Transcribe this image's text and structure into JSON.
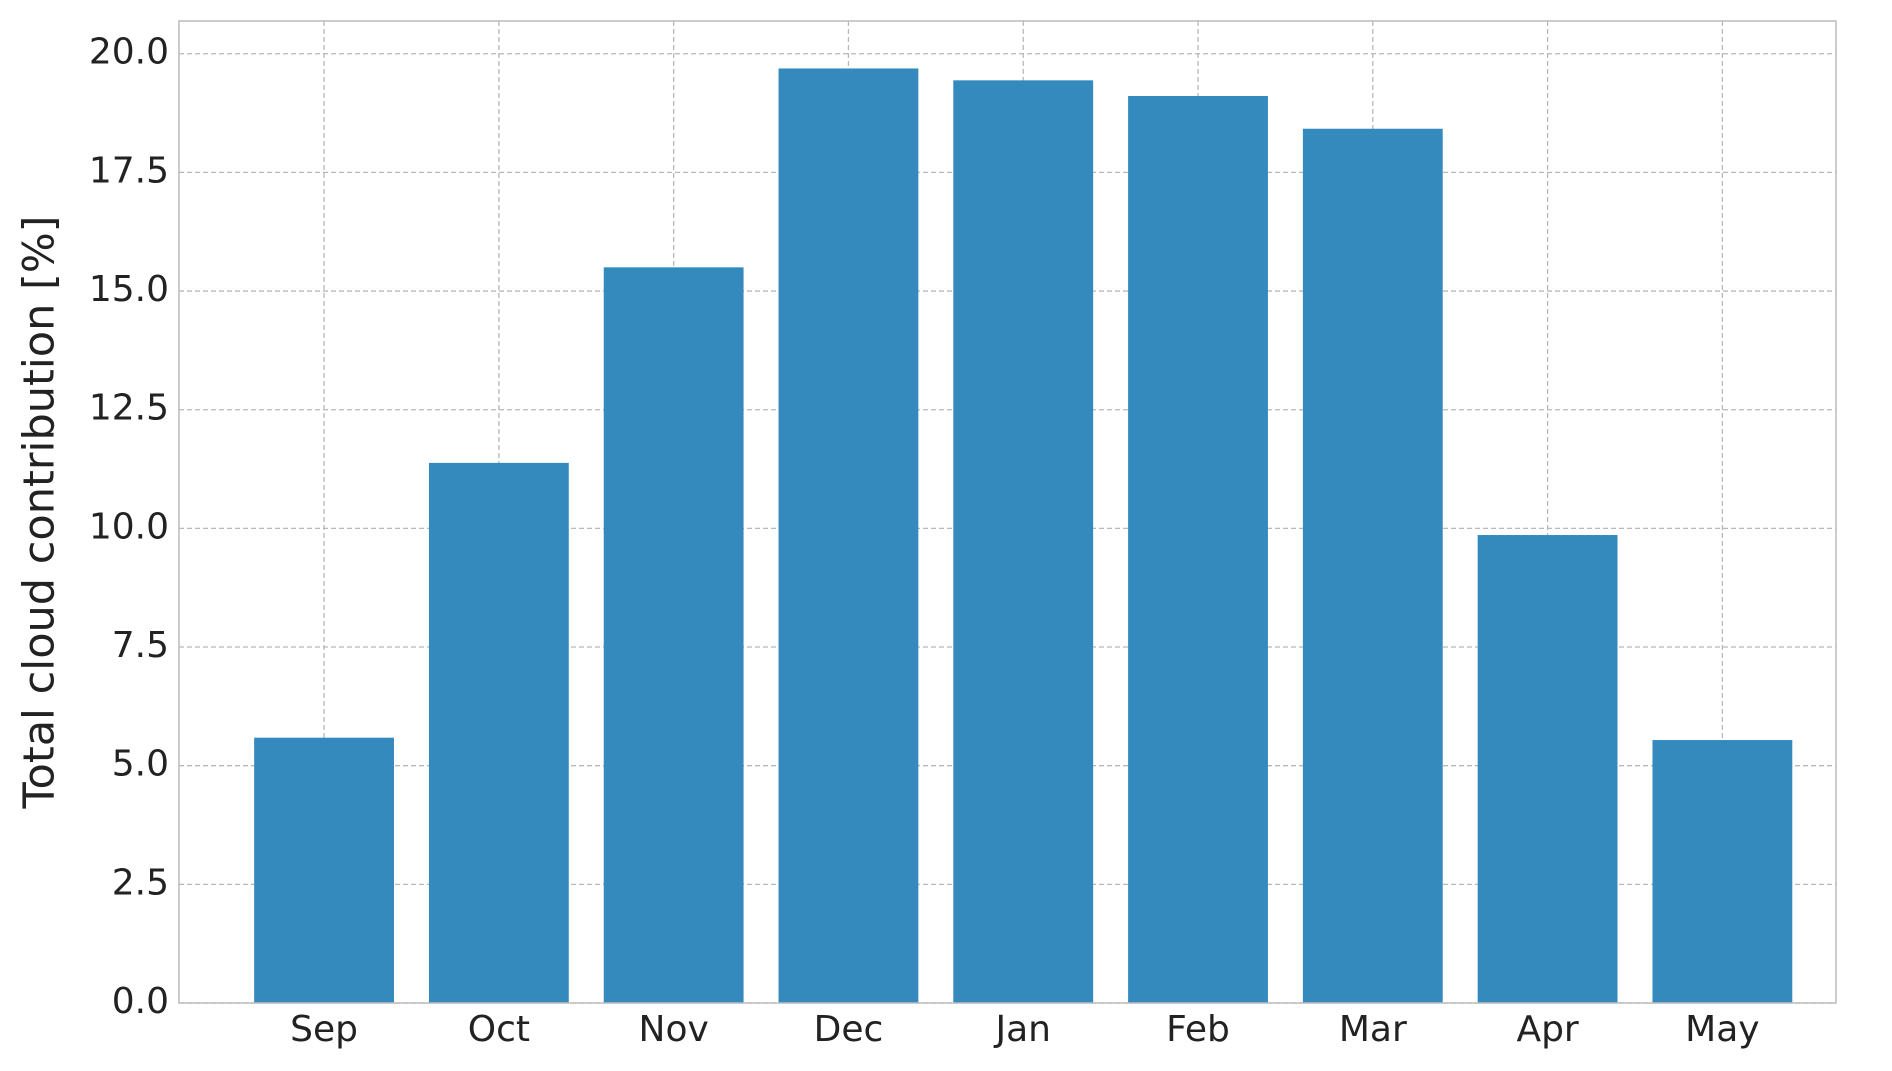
{
  "chart_data": {
    "type": "bar",
    "y_label": "Total cloud contribution [%]",
    "categories": [
      "Sep",
      "Oct",
      "Nov",
      "Dec",
      "Jan",
      "Feb",
      "Mar",
      "Apr",
      "May"
    ],
    "values": [
      5.59,
      11.38,
      15.5,
      19.69,
      19.44,
      19.11,
      18.42,
      9.86,
      5.54
    ],
    "color": "#348abd",
    "ylim": [
      0,
      20.69
    ],
    "yticks": [
      {
        "value": 0,
        "label": "0.0"
      },
      2.5,
      {
        "value": 5,
        "label": "5.0"
      },
      7.5,
      {
        "value": 10,
        "label": "10.0"
      },
      12.5,
      {
        "value": 15,
        "label": "15.0"
      },
      17.5,
      {
        "value": 20,
        "label": "20.0"
      }
    ],
    "grid": true
  }
}
